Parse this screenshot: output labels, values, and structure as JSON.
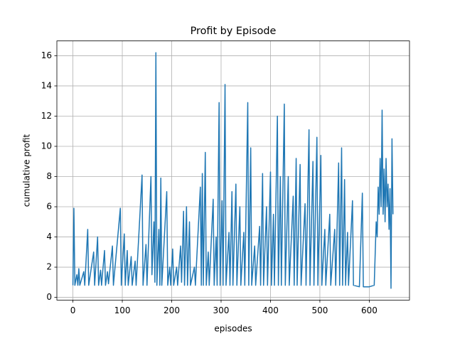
{
  "chart_data": {
    "type": "line",
    "title": "Profit by Episode",
    "x_label": "episodes",
    "y_label": "cumulative profit",
    "x": [
      0,
      2,
      4,
      8,
      10,
      12,
      14,
      22,
      24,
      30,
      32,
      42,
      44,
      50,
      52,
      56,
      58,
      64,
      66,
      70,
      72,
      80,
      82,
      96,
      98,
      104,
      106,
      110,
      112,
      118,
      120,
      126,
      128,
      140,
      142,
      148,
      150,
      158,
      160,
      164,
      166,
      168,
      170,
      174,
      176,
      178,
      180,
      190,
      192,
      196,
      198,
      202,
      204,
      210,
      212,
      218,
      220,
      224,
      226,
      230,
      232,
      236,
      238,
      246,
      248,
      258,
      260,
      262,
      264,
      268,
      270,
      274,
      276,
      284,
      286,
      290,
      292,
      296,
      298,
      302,
      304,
      308,
      310,
      316,
      318,
      322,
      324,
      330,
      332,
      338,
      340,
      346,
      348,
      354,
      356,
      360,
      362,
      368,
      370,
      378,
      380,
      384,
      386,
      392,
      394,
      400,
      402,
      406,
      408,
      414,
      416,
      420,
      422,
      428,
      430,
      436,
      438,
      446,
      448,
      452,
      454,
      460,
      462,
      470,
      472,
      478,
      480,
      486,
      488,
      494,
      496,
      502,
      504,
      510,
      512,
      520,
      522,
      530,
      532,
      538,
      540,
      544,
      546,
      550,
      552,
      556,
      558,
      566,
      568,
      580,
      586,
      588,
      600,
      610,
      614,
      616,
      618,
      620,
      622,
      624,
      626,
      628,
      630,
      632,
      634,
      636,
      638,
      640,
      642,
      644,
      646,
      648
    ],
    "values": [
      0.8,
      5.9,
      0.8,
      1.5,
      0.8,
      1.9,
      0.8,
      1.7,
      0.8,
      4.5,
      0.8,
      3.0,
      0.8,
      4.0,
      0.8,
      1.8,
      0.8,
      3.1,
      0.8,
      1.7,
      0.9,
      3.4,
      0.8,
      5.9,
      0.8,
      4.2,
      0.8,
      3.1,
      0.8,
      2.7,
      0.8,
      2.4,
      0.8,
      8.1,
      0.8,
      3.5,
      0.8,
      8.0,
      1.5,
      5.0,
      1.0,
      16.2,
      0.8,
      4.5,
      0.8,
      7.9,
      0.8,
      7.0,
      0.8,
      2.0,
      0.8,
      3.2,
      0.8,
      2.0,
      0.8,
      3.4,
      1.0,
      5.7,
      0.8,
      6.0,
      0.8,
      5.0,
      0.8,
      2.0,
      0.8,
      7.3,
      0.8,
      8.2,
      0.8,
      9.6,
      0.8,
      3.0,
      0.8,
      6.5,
      0.8,
      4.0,
      0.8,
      12.9,
      0.8,
      6.4,
      0.8,
      14.1,
      0.8,
      4.3,
      0.8,
      7.0,
      0.8,
      7.5,
      0.8,
      6.0,
      0.8,
      4.3,
      0.8,
      12.9,
      0.8,
      9.9,
      0.8,
      3.4,
      0.8,
      4.7,
      0.8,
      8.2,
      0.8,
      6.0,
      0.8,
      8.3,
      0.8,
      5.5,
      0.8,
      12.0,
      0.8,
      8.0,
      0.8,
      12.8,
      0.8,
      8.0,
      0.8,
      6.7,
      0.8,
      9.2,
      0.8,
      8.8,
      0.8,
      6.2,
      0.8,
      11.1,
      0.8,
      9.0,
      0.8,
      10.6,
      0.8,
      9.4,
      0.8,
      4.5,
      0.8,
      5.5,
      0.8,
      4.5,
      0.8,
      8.9,
      0.8,
      9.9,
      0.8,
      7.8,
      0.8,
      4.3,
      0.8,
      6.4,
      0.8,
      0.7,
      6.9,
      0.7,
      0.7,
      0.8,
      5.0,
      4.0,
      7.3,
      5.5,
      9.2,
      6.0,
      12.4,
      5.5,
      8.5,
      5.0,
      9.2,
      6.0,
      7.5,
      4.5,
      7.2,
      0.6,
      10.5,
      5.5
    ],
    "color": "#1f77b4",
    "xlim": [
      -32.45,
      681.45
    ],
    "xticks": [
      0,
      100,
      200,
      300,
      400,
      500,
      600
    ],
    "ylim": [
      -0.18,
      16.98
    ],
    "yticks": [
      0,
      2,
      4,
      6,
      8,
      10,
      12,
      14,
      16
    ],
    "grid": true
  }
}
